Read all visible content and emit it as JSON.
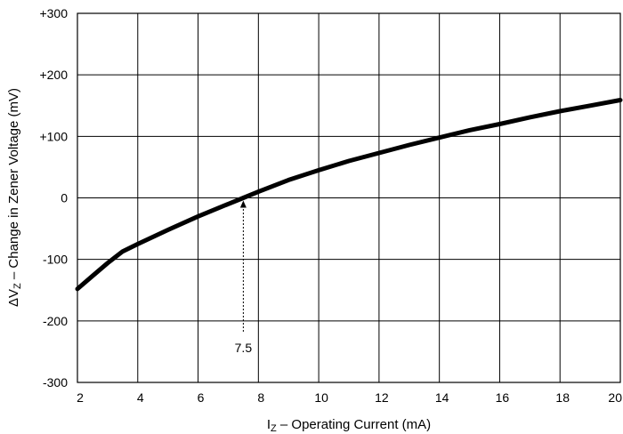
{
  "chart_data": {
    "type": "line",
    "title": "",
    "xlabel": {
      "main": "I",
      "sub": "Z",
      "rest": " – Operating Current (mA)"
    },
    "ylabel": {
      "pre": "ΔV",
      "sub": "Z",
      "rest": " – Change in Zener Voltage (mV)"
    },
    "xlim": [
      2,
      20
    ],
    "ylim": [
      -300,
      300
    ],
    "xticks": [
      2,
      4,
      6,
      8,
      10,
      12,
      14,
      16,
      18,
      20
    ],
    "xtick_labels": [
      "2",
      "4",
      "6",
      "8",
      "10",
      "12",
      "14",
      "16",
      "18",
      "20"
    ],
    "yticks": [
      300,
      200,
      100,
      0,
      -100,
      -200,
      -300
    ],
    "ytick_labels": [
      "+300",
      "+200",
      "+100",
      "0",
      "-100",
      "-200",
      "-300"
    ],
    "grid": true,
    "legend": "none",
    "series": [
      {
        "x": [
          2,
          2.5,
          3,
          3.5,
          4,
          5,
          6,
          7,
          7.5,
          8,
          9,
          10,
          11,
          12,
          13,
          14,
          15,
          16,
          17,
          18,
          19,
          20
        ],
        "y": [
          -148,
          -127,
          -106,
          -87,
          -75,
          -52,
          -30,
          -10,
          0,
          10,
          29,
          45,
          60,
          73,
          86,
          98,
          110,
          120,
          131,
          141,
          150,
          159
        ]
      }
    ],
    "annotations": [
      {
        "text": "7.5",
        "x": 7.5,
        "y": 0
      }
    ],
    "colors": {
      "curve": "#000000",
      "grid": "#000000"
    }
  }
}
